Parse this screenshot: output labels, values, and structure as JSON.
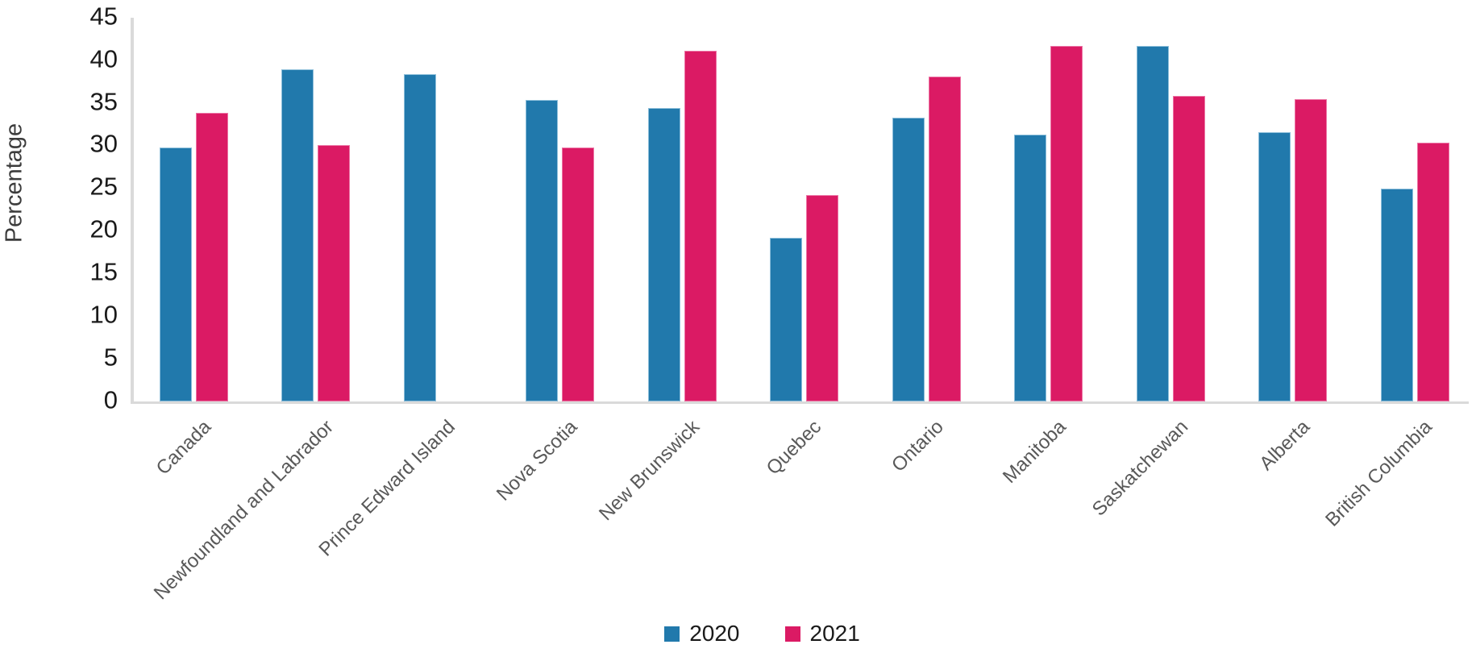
{
  "chart_data": {
    "type": "bar",
    "title": "",
    "ylabel": "Percentage",
    "xlabel": "",
    "ylim": [
      0,
      45
    ],
    "yticks": [
      0,
      5,
      10,
      15,
      20,
      25,
      30,
      35,
      40,
      45
    ],
    "grid": false,
    "legend_position": "bottom-center",
    "categories": [
      "Canada",
      "Newfoundland and Labrador",
      "Prince Edward Island",
      "Nova Scotia",
      "New Brunswick",
      "Quebec",
      "Ontario",
      "Manitoba",
      "Saskatchewan",
      "Alberta",
      "British Columbia"
    ],
    "series": [
      {
        "name": "2020",
        "color": "#2179ac",
        "values": [
          29.8,
          39.0,
          38.4,
          35.4,
          34.4,
          19.2,
          33.3,
          31.3,
          41.7,
          31.6,
          25.0
        ]
      },
      {
        "name": "2021",
        "color": "#db1a64",
        "values": [
          33.9,
          30.1,
          null,
          29.8,
          41.2,
          24.2,
          38.1,
          41.7,
          35.9,
          35.5,
          30.4
        ]
      }
    ],
    "axis_color": "#dadada"
  }
}
